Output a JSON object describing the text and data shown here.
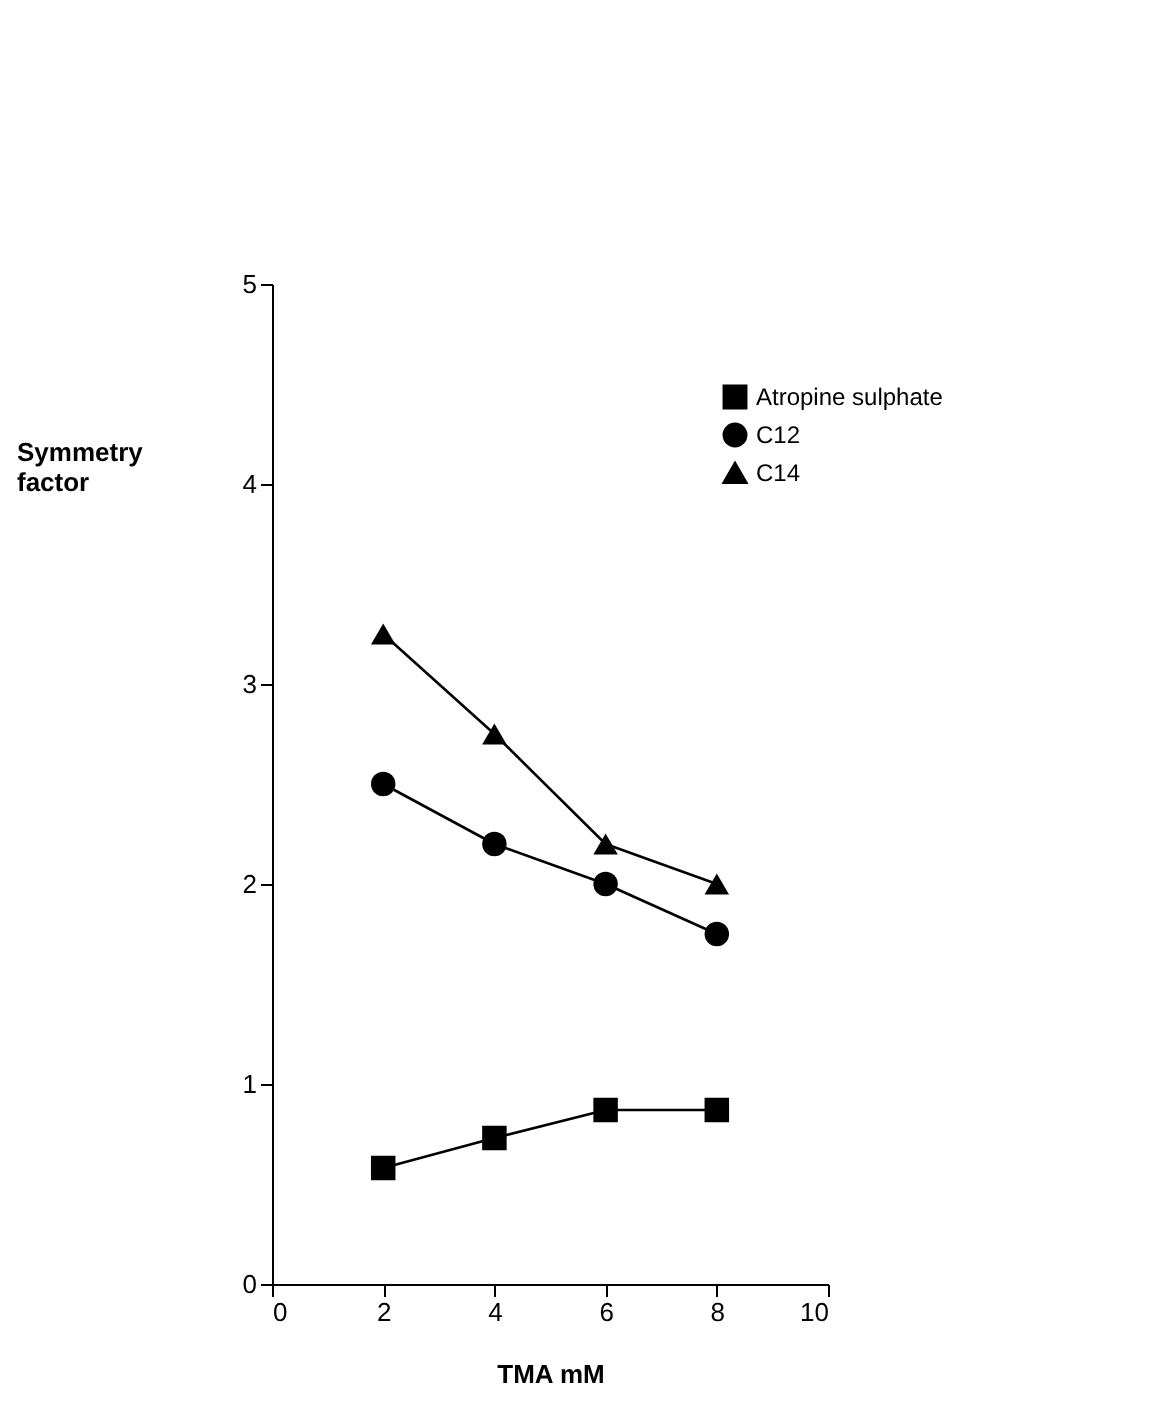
{
  "chart_data": {
    "type": "line",
    "xlabel": "TMA mM",
    "ylabel": "Symmetry factor",
    "x": [
      2,
      4,
      6,
      8
    ],
    "series": [
      {
        "name": "Atropine sulphate",
        "color": "#000000",
        "marker": "square",
        "values": [
          0.58,
          0.73,
          0.87,
          0.87
        ]
      },
      {
        "name": "C12",
        "color": "#000000",
        "marker": "circle",
        "values": [
          2.5,
          2.2,
          2.0,
          1.75
        ]
      },
      {
        "name": "C14",
        "color": "#000000",
        "marker": "triangle",
        "values": [
          3.25,
          2.75,
          2.2,
          2.0
        ]
      }
    ],
    "xlim": [
      0,
      10
    ],
    "xticks": [
      0,
      2,
      4,
      6,
      8,
      10
    ],
    "ylim": [
      0,
      5
    ],
    "yticks": [
      0,
      1,
      2,
      3,
      4,
      5
    ],
    "grid": false,
    "legend": "top right"
  }
}
